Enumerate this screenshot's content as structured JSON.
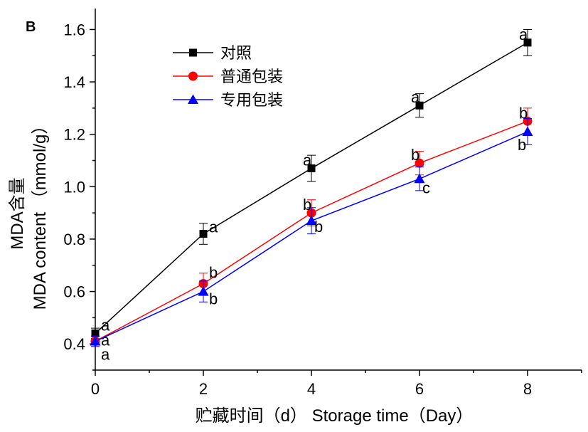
{
  "panel_label": "B",
  "chart_data": {
    "type": "line",
    "xlabel": "贮藏时间（d） Storage time（Day）",
    "ylabel_cn": "MDA含量",
    "ylabel_en": "MDA content （mmol/g）",
    "xlim": [
      0,
      9
    ],
    "ylim": [
      0.3,
      1.68
    ],
    "x_ticks": [
      0,
      2,
      4,
      6,
      8
    ],
    "y_ticks": [
      0.4,
      0.6,
      0.8,
      1.0,
      1.2,
      1.4,
      1.6
    ],
    "y_tick_labels": [
      "0.4",
      "0.6",
      "0.8",
      "1.0",
      "1.2",
      "1.4",
      "1.6"
    ],
    "grid": false,
    "legend_position": "top-left",
    "x": [
      0,
      2,
      4,
      6,
      8
    ],
    "series": [
      {
        "name": "对照",
        "color": "#000000",
        "marker": "square",
        "values": [
          0.44,
          0.82,
          1.07,
          1.31,
          1.55
        ],
        "errors": [
          0.02,
          0.04,
          0.05,
          0.045,
          0.05
        ],
        "labels": [
          "a",
          "a",
          "a",
          "a",
          "a"
        ]
      },
      {
        "name": "普通包装",
        "color": "#ff0000",
        "marker": "circle",
        "values": [
          0.41,
          0.63,
          0.9,
          1.09,
          1.25
        ],
        "errors": [
          0.02,
          0.04,
          0.05,
          0.045,
          0.05
        ],
        "labels": [
          "a",
          "b",
          "b",
          "b",
          "b"
        ]
      },
      {
        "name": "专用包装",
        "color": "#0000ff",
        "marker": "triangle",
        "values": [
          0.41,
          0.6,
          0.87,
          1.03,
          1.21
        ],
        "errors": [
          0.02,
          0.04,
          0.05,
          0.045,
          0.05
        ],
        "labels": [
          "a",
          "b",
          "b",
          "c",
          "b"
        ]
      }
    ]
  }
}
